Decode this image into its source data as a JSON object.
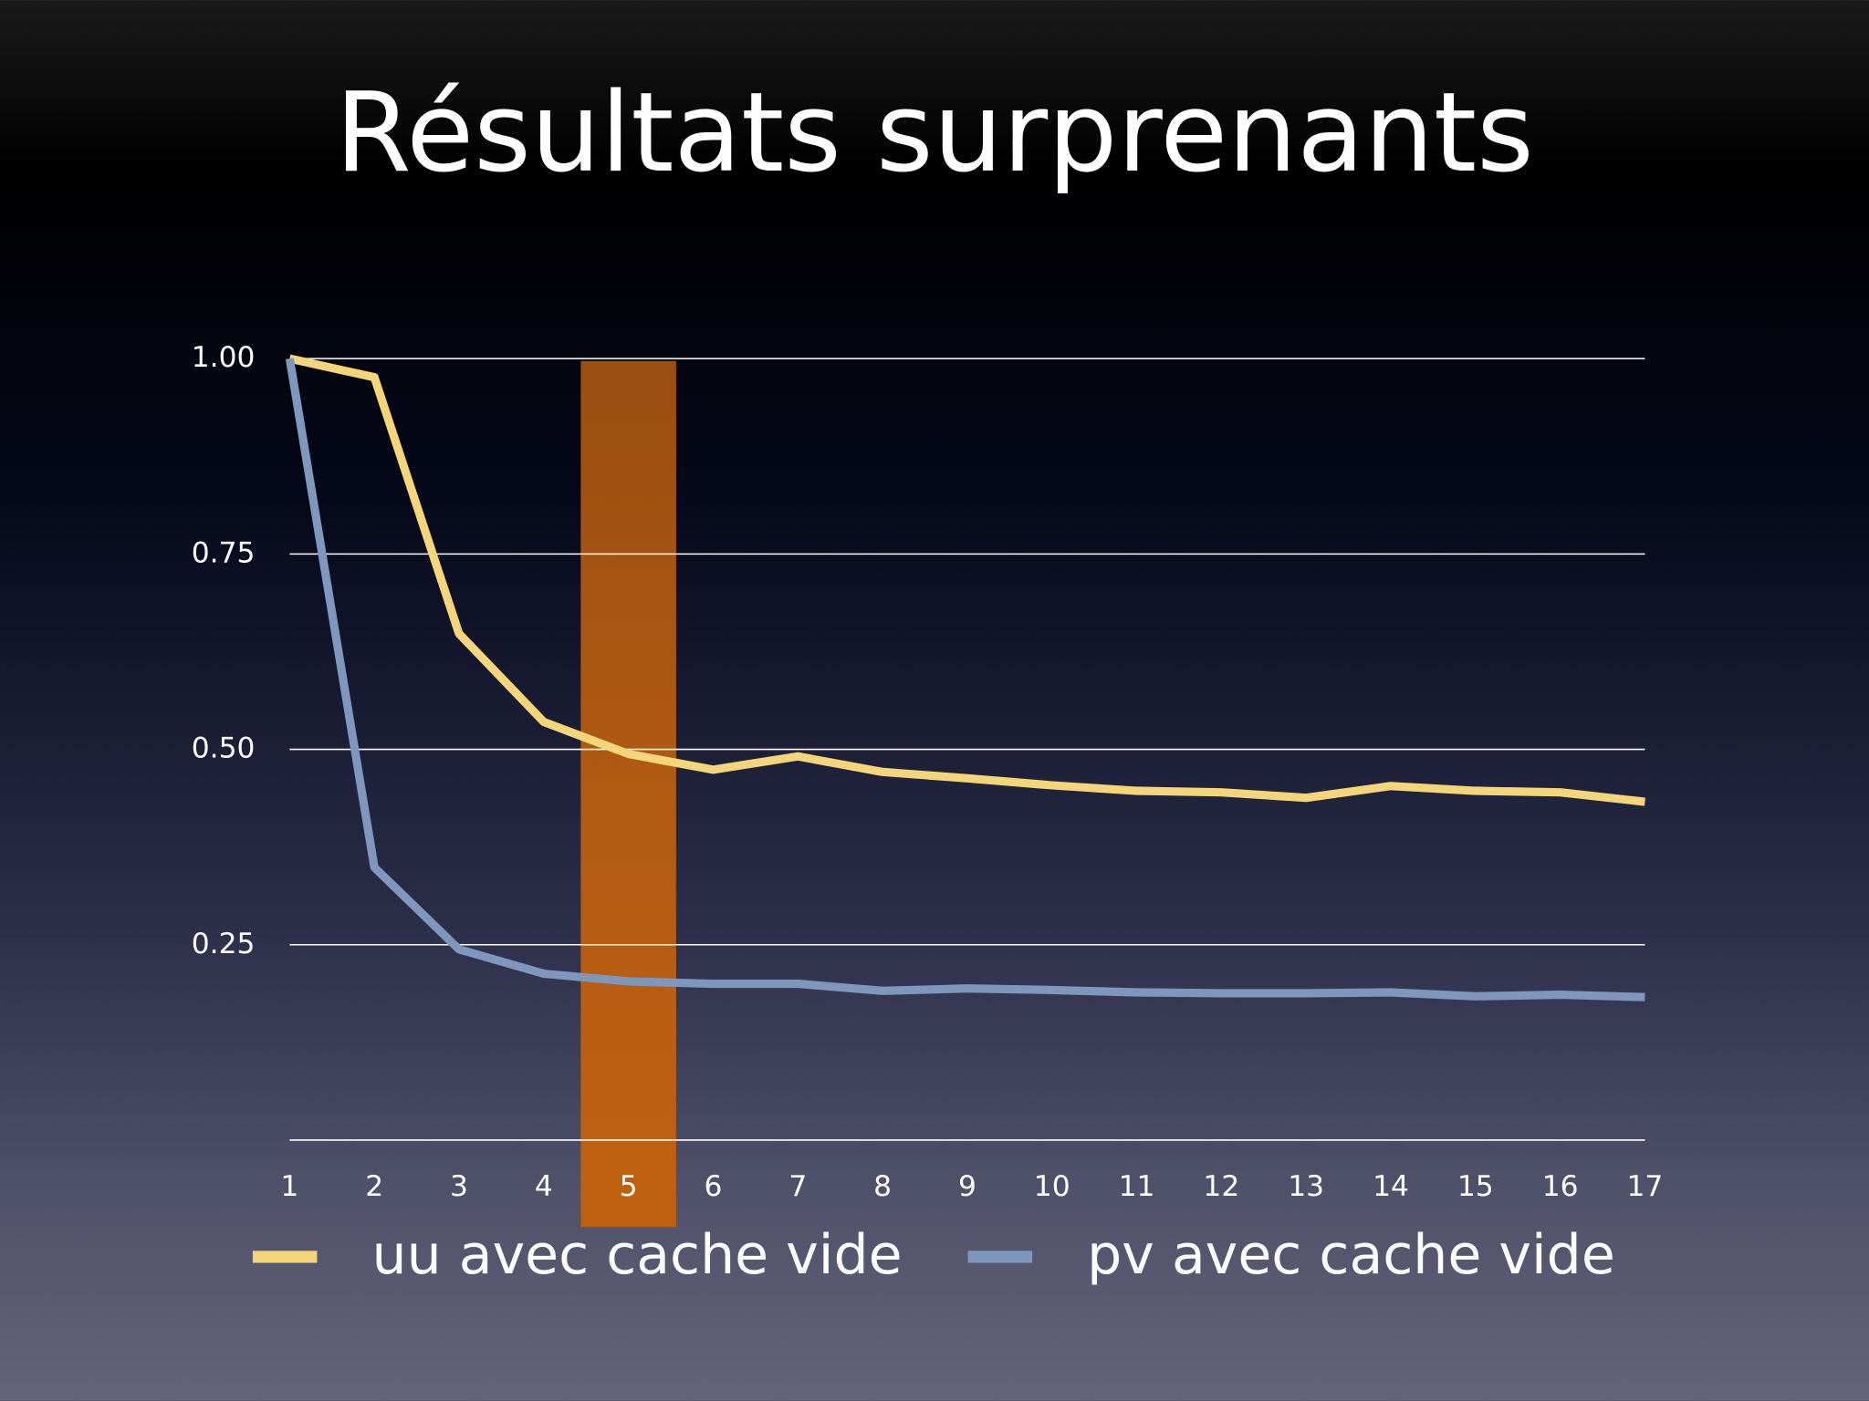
{
  "chart_data": {
    "type": "line",
    "title": "Résultats surprenants",
    "categories": [
      "1",
      "2",
      "3",
      "4",
      "5",
      "6",
      "7",
      "8",
      "9",
      "10",
      "11",
      "12",
      "13",
      "14",
      "15",
      "16",
      "17"
    ],
    "series": [
      {
        "name": "uu avec cache vide",
        "color": "#f5d57a",
        "values": [
          1.0,
          0.976,
          0.648,
          0.535,
          0.494,
          0.474,
          0.491,
          0.471,
          0.463,
          0.454,
          0.447,
          0.445,
          0.438,
          0.453,
          0.447,
          0.445,
          0.433
        ]
      },
      {
        "name": "pv avec cache vide",
        "color": "#7f97bd",
        "values": [
          1.0,
          0.349,
          0.244,
          0.213,
          0.203,
          0.2,
          0.2,
          0.191,
          0.194,
          0.192,
          0.189,
          0.188,
          0.188,
          0.189,
          0.184,
          0.186,
          0.183
        ]
      }
    ],
    "ylim": [
      0,
      1
    ],
    "yticks": [
      {
        "value": 0.25,
        "label": "0.25"
      },
      {
        "value": 0.5,
        "label": "0.50"
      },
      {
        "value": 0.75,
        "label": "0.75"
      },
      {
        "value": 1,
        "label": "1.00"
      }
    ],
    "grid": true,
    "highlight": "5",
    "highlight_color": "#c0600f",
    "legend": "bottom"
  }
}
